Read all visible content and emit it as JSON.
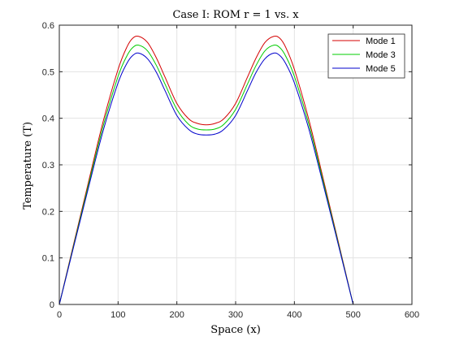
{
  "chart_data": {
    "type": "line",
    "title": "Case I: ROM r = 1 vs. x",
    "xlabel": "Space (x)",
    "ylabel": "Temperature (T)",
    "xlim": [
      0,
      600
    ],
    "ylim": [
      0,
      0.6
    ],
    "xticks": [
      0,
      100,
      200,
      300,
      400,
      500,
      600
    ],
    "yticks": [
      0,
      0.1,
      0.2,
      0.3,
      0.4,
      0.5,
      0.6
    ],
    "xtick_labels": [
      "0",
      "100",
      "200",
      "300",
      "400",
      "500",
      "600"
    ],
    "ytick_labels": [
      "0",
      "0.1",
      "0.2",
      "0.3",
      "0.4",
      "0.5",
      "0.6"
    ],
    "grid": true,
    "legend_position": "top-right",
    "x": [
      0,
      25,
      50,
      75,
      100,
      115,
      125,
      135,
      150,
      165,
      180,
      200,
      220,
      235,
      250,
      265,
      280,
      300,
      320,
      335,
      350,
      365,
      375,
      385,
      400,
      425,
      450,
      475,
      500
    ],
    "series": [
      {
        "name": "Mode 1",
        "color": "#d40000",
        "values": [
          0,
          0.133,
          0.265,
          0.395,
          0.505,
          0.553,
          0.572,
          0.576,
          0.563,
          0.53,
          0.488,
          0.432,
          0.399,
          0.389,
          0.386,
          0.389,
          0.399,
          0.432,
          0.488,
          0.53,
          0.563,
          0.576,
          0.572,
          0.553,
          0.505,
          0.395,
          0.265,
          0.133,
          0
        ]
      },
      {
        "name": "Mode 3",
        "color": "#00cc00",
        "values": [
          0,
          0.13,
          0.259,
          0.385,
          0.49,
          0.534,
          0.552,
          0.557,
          0.545,
          0.514,
          0.473,
          0.419,
          0.387,
          0.377,
          0.375,
          0.377,
          0.387,
          0.419,
          0.473,
          0.514,
          0.545,
          0.557,
          0.552,
          0.534,
          0.49,
          0.385,
          0.259,
          0.13,
          0
        ]
      },
      {
        "name": "Mode 5",
        "color": "#0000cc",
        "values": [
          0,
          0.127,
          0.253,
          0.375,
          0.476,
          0.518,
          0.535,
          0.54,
          0.528,
          0.499,
          0.459,
          0.406,
          0.376,
          0.366,
          0.364,
          0.366,
          0.376,
          0.406,
          0.459,
          0.499,
          0.528,
          0.54,
          0.535,
          0.518,
          0.476,
          0.375,
          0.253,
          0.127,
          0
        ]
      }
    ]
  }
}
